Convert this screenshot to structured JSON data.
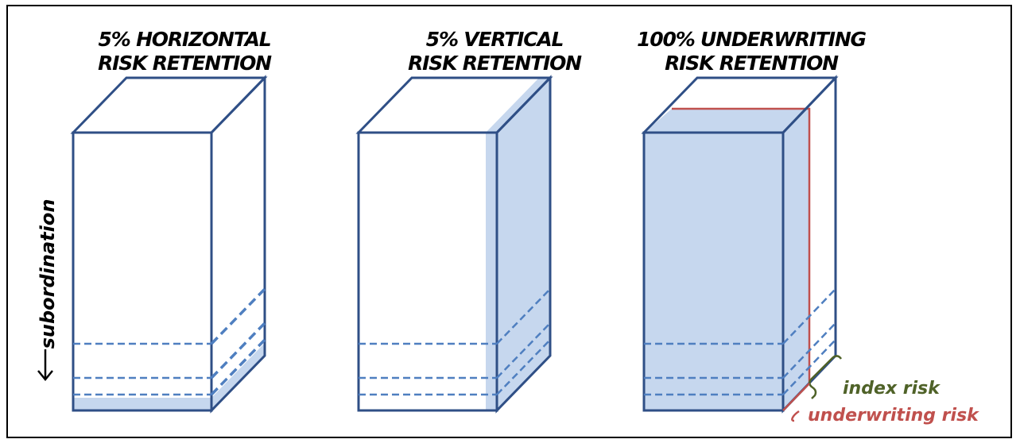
{
  "diagram": {
    "panels": [
      {
        "title_line1": "5% HORIZONTAL",
        "title_line2": "RISK RETENTION",
        "retention": "horizontal"
      },
      {
        "title_line1": "5% VERTICAL",
        "title_line2": "RISK RETENTION",
        "retention": "vertical"
      },
      {
        "title_line1": "100% UNDERWRITING",
        "title_line2": "RISK RETENTION",
        "retention": "underwriting"
      }
    ],
    "axis_label": "subordination",
    "annotations": {
      "index_risk": "index risk",
      "underwriting_risk": "underwriting risk"
    },
    "colors": {
      "outline": "#2f4f86",
      "fill": "#c6d7ee",
      "dash": "#4f7fc0",
      "red": "#c0504d",
      "green": "#4f6228"
    }
  }
}
